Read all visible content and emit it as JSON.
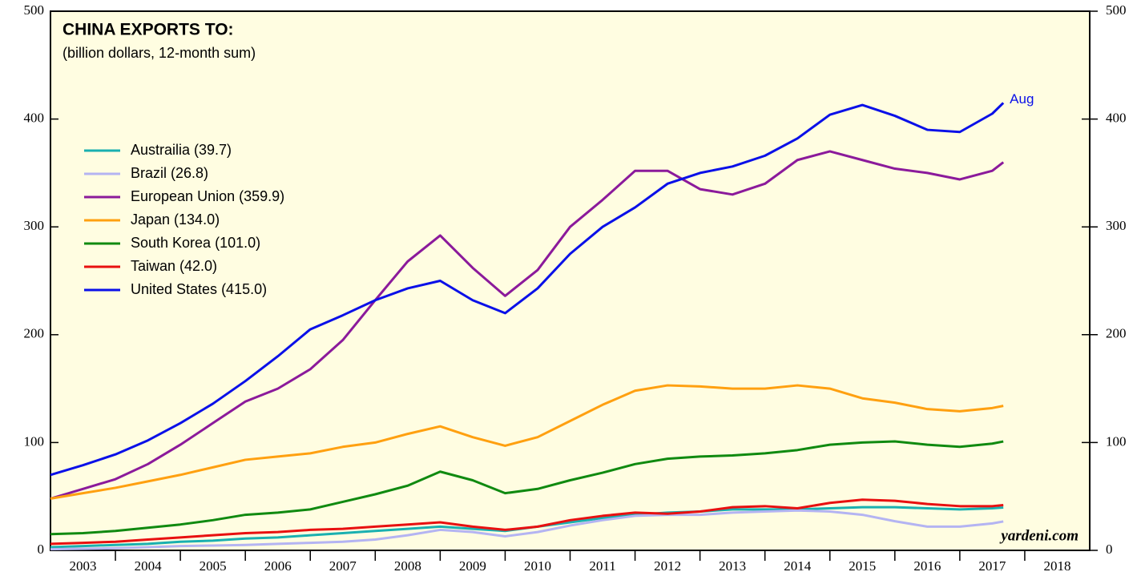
{
  "chart_data": {
    "type": "line",
    "title": "CHINA EXPORTS TO:",
    "subtitle": "(billion dollars, 12-month sum)",
    "annotation": "Aug",
    "source": "yardeni.com",
    "x": [
      2003,
      2003.5,
      2004,
      2004.5,
      2005,
      2005.5,
      2006,
      2006.5,
      2007,
      2007.5,
      2008,
      2008.5,
      2009,
      2009.5,
      2010,
      2010.5,
      2011,
      2011.5,
      2012,
      2012.5,
      2013,
      2013.5,
      2014,
      2014.5,
      2015,
      2015.5,
      2016,
      2016.5,
      2017,
      2017.5,
      2017.67
    ],
    "xlim": [
      2003,
      2019
    ],
    "xticks": [
      {
        "value": 2003.5,
        "label": "2003"
      },
      {
        "value": 2004.5,
        "label": "2004"
      },
      {
        "value": 2005.5,
        "label": "2005"
      },
      {
        "value": 2006.5,
        "label": "2006"
      },
      {
        "value": 2007.5,
        "label": "2007"
      },
      {
        "value": 2008.5,
        "label": "2008"
      },
      {
        "value": 2009.5,
        "label": "2009"
      },
      {
        "value": 2010.5,
        "label": "2010"
      },
      {
        "value": 2011.5,
        "label": "2011"
      },
      {
        "value": 2012.5,
        "label": "2012"
      },
      {
        "value": 2013.5,
        "label": "2013"
      },
      {
        "value": 2014.5,
        "label": "2014"
      },
      {
        "value": 2015.5,
        "label": "2015"
      },
      {
        "value": 2016.5,
        "label": "2016"
      },
      {
        "value": 2017.5,
        "label": "2017"
      },
      {
        "value": 2018.5,
        "label": "2018"
      }
    ],
    "ylim": [
      0,
      500
    ],
    "yticks": [
      0,
      100,
      200,
      300,
      400,
      500
    ],
    "legend": "upper left",
    "series": [
      {
        "name": "Austrailia (39.7)",
        "color": "#1ab0b0",
        "values": [
          3,
          4,
          5,
          6,
          8,
          9,
          11,
          12,
          14,
          16,
          18,
          20,
          22,
          20,
          18,
          22,
          26,
          30,
          33,
          35,
          36,
          38,
          38,
          38,
          39,
          40,
          40,
          39,
          38,
          39,
          39.7
        ]
      },
      {
        "name": "Brazil (26.8)",
        "color": "#b4b4f2",
        "values": [
          1,
          1.5,
          2,
          3,
          4,
          4.5,
          5,
          6,
          7,
          8,
          10,
          14,
          19,
          17,
          13,
          17,
          23,
          28,
          32,
          33,
          33,
          35,
          36,
          37,
          36,
          33,
          27,
          22,
          22,
          25,
          26.8
        ]
      },
      {
        "name": "European Union (359.9)",
        "color": "#8b1a9b",
        "values": [
          48,
          57,
          66,
          80,
          98,
          118,
          138,
          150,
          168,
          195,
          232,
          268,
          292,
          262,
          236,
          260,
          300,
          325,
          352,
          352,
          335,
          330,
          340,
          362,
          370,
          362,
          354,
          350,
          344,
          352,
          359.9
        ]
      },
      {
        "name": "Japan (134.0)",
        "color": "#ffa010",
        "values": [
          48,
          53,
          58,
          64,
          70,
          77,
          84,
          87,
          90,
          96,
          100,
          108,
          115,
          105,
          97,
          105,
          120,
          135,
          148,
          153,
          152,
          150,
          150,
          153,
          150,
          141,
          137,
          131,
          129,
          132,
          134
        ]
      },
      {
        "name": "South Korea (101.0)",
        "color": "#108a10",
        "values": [
          15,
          16,
          18,
          21,
          24,
          28,
          33,
          35,
          38,
          45,
          52,
          60,
          73,
          65,
          53,
          57,
          65,
          72,
          80,
          85,
          87,
          88,
          90,
          93,
          98,
          100,
          101,
          98,
          96,
          99,
          101
        ]
      },
      {
        "name": "Taiwan (42.0)",
        "color": "#e81010",
        "values": [
          6,
          7,
          8,
          10,
          12,
          14,
          16,
          17,
          19,
          20,
          22,
          24,
          26,
          22,
          19,
          22,
          28,
          32,
          35,
          34,
          36,
          40,
          41,
          39,
          44,
          47,
          46,
          43,
          41,
          41,
          42
        ]
      },
      {
        "name": "United States (415.0)",
        "color": "#0a10e8",
        "values": [
          70,
          79,
          89,
          102,
          118,
          136,
          157,
          180,
          205,
          218,
          232,
          243,
          250,
          232,
          220,
          243,
          275,
          300,
          318,
          340,
          350,
          356,
          366,
          382,
          404,
          413,
          403,
          390,
          388,
          405,
          415
        ]
      }
    ]
  }
}
